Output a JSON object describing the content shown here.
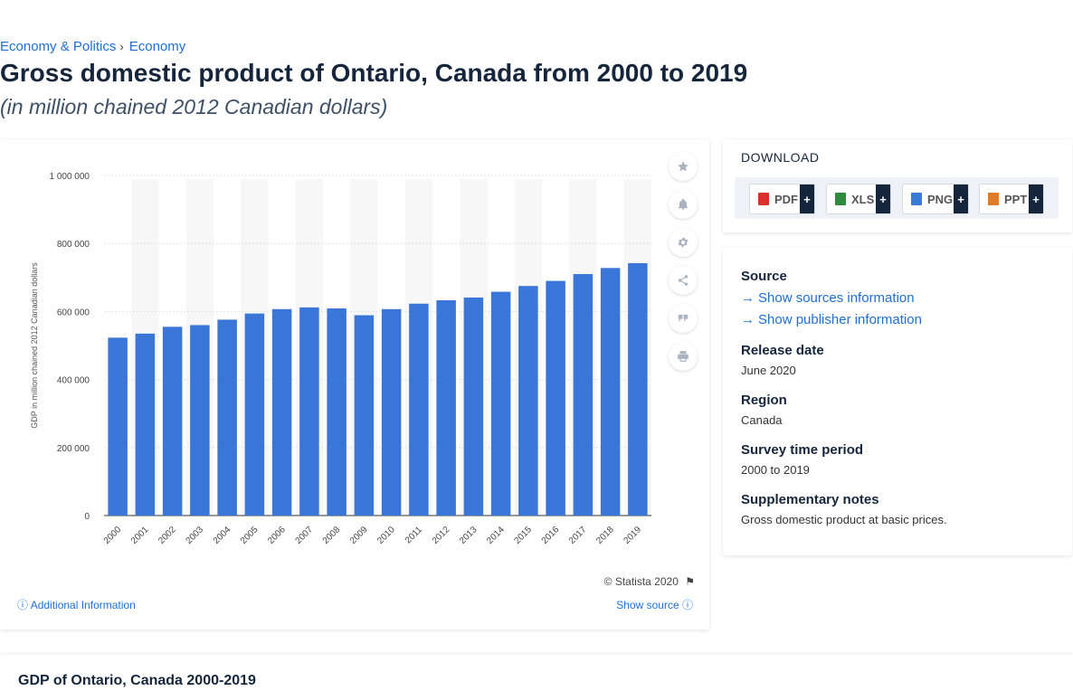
{
  "breadcrumb": {
    "items": [
      "Economy & Politics",
      "Economy"
    ],
    "separator": "›"
  },
  "page": {
    "title": "Gross domestic product of Ontario, Canada from 2000 to 2019",
    "subtitle": "(in million chained 2012 Canadian dollars)"
  },
  "chart_tools": [
    "star-icon",
    "bell-icon",
    "gear-icon",
    "share-icon",
    "quote-icon",
    "print-icon"
  ],
  "chart_footer": {
    "copyright": "© Statista 2020",
    "additional_info": "Additional Information",
    "show_source": "Show source"
  },
  "download": {
    "title": "DOWNLOAD",
    "buttons": [
      {
        "label": "PDF",
        "color": "#d9302c"
      },
      {
        "label": "XLS",
        "color": "#2e8b3d"
      },
      {
        "label": "PNG",
        "color": "#3a7bd5"
      },
      {
        "label": "PPT",
        "color": "#e07b2a"
      }
    ],
    "plus": "+"
  },
  "info": {
    "source_heading": "Source",
    "source_link": "Show sources information",
    "publisher_link": "Show publisher information",
    "release_heading": "Release date",
    "release_value": "June 2020",
    "region_heading": "Region",
    "region_value": "Canada",
    "survey_heading": "Survey time period",
    "survey_value": "2000 to 2019",
    "notes_heading": "Supplementary notes",
    "notes_value": "Gross domestic product at basic prices."
  },
  "bottom": {
    "title": "GDP of Ontario, Canada 2000-2019"
  },
  "colors": {
    "bar": "#3a76d8",
    "accent": "#1f6fd1",
    "stripe": "#f7f7f7"
  },
  "chart_data": {
    "type": "bar",
    "categories": [
      "2000",
      "2001",
      "2002",
      "2003",
      "2004",
      "2005",
      "2006",
      "2007",
      "2008",
      "2009",
      "2010",
      "2011",
      "2012",
      "2013",
      "2014",
      "2015",
      "2016",
      "2017",
      "2018",
      "2019"
    ],
    "values": [
      523000,
      535000,
      555000,
      560000,
      576000,
      594000,
      607000,
      612000,
      609000,
      589000,
      607000,
      623000,
      633000,
      641000,
      658000,
      675000,
      690000,
      710000,
      728000,
      742000
    ],
    "ylabel": "GDP in million chained 2012 Canadian dollars",
    "xlabel": "",
    "ylim": [
      0,
      1000000
    ],
    "yticks": [
      0,
      200000,
      400000,
      600000,
      800000,
      1000000
    ],
    "ytick_labels": [
      "0",
      "200 000",
      "400 000",
      "600 000",
      "800 000",
      "1 000 000"
    ],
    "grid": true
  }
}
